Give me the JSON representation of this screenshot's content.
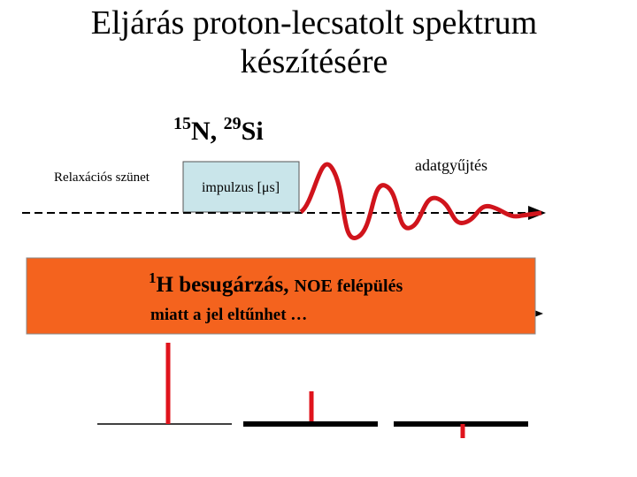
{
  "header": {
    "title_lines": [
      "Eljárás proton-lecsatolt spektrum",
      "készítésére"
    ]
  },
  "nuclei": {
    "parts": [
      "15",
      "N, ",
      "29",
      "Si"
    ]
  },
  "labels": {
    "relaxation": "Relaxációs szünet",
    "pulse": "impulzus [μs]",
    "acquisition": "adatgyűjtés"
  },
  "irradiation": {
    "sup": "1",
    "line1": "H besugárzás,",
    "line1b": "NOE felépülés",
    "line2": "miatt a jel eltűnhet …"
  }
}
